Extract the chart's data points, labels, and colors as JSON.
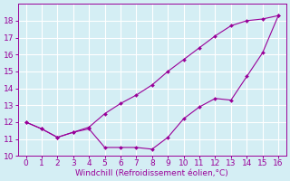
{
  "xlabel": "Windchill (Refroidissement éolien,°C)",
  "x": [
    0,
    1,
    2,
    3,
    4,
    5,
    6,
    7,
    8,
    9,
    10,
    11,
    12,
    13,
    14,
    15,
    16
  ],
  "upper_line": [
    12.0,
    11.6,
    11.1,
    11.4,
    11.7,
    12.5,
    13.1,
    13.6,
    14.2,
    15.0,
    15.7,
    16.4,
    17.1,
    17.7,
    18.0,
    18.1,
    18.3
  ],
  "lower_line": [
    12.0,
    11.6,
    11.1,
    11.4,
    11.6,
    10.5,
    10.5,
    10.5,
    10.4,
    11.1,
    12.2,
    12.9,
    13.4,
    13.3,
    14.7,
    16.1,
    18.3
  ],
  "line_color": "#990099",
  "bg_color": "#d4eef4",
  "grid_color": "#ffffff",
  "ylim": [
    10,
    19
  ],
  "xlim": [
    -0.5,
    16.5
  ],
  "yticks": [
    10,
    11,
    12,
    13,
    14,
    15,
    16,
    17,
    18
  ],
  "xticks": [
    0,
    1,
    2,
    3,
    4,
    5,
    6,
    7,
    8,
    9,
    10,
    11,
    12,
    13,
    14,
    15,
    16
  ],
  "tick_fontsize": 6.5,
  "xlabel_fontsize": 6.5
}
